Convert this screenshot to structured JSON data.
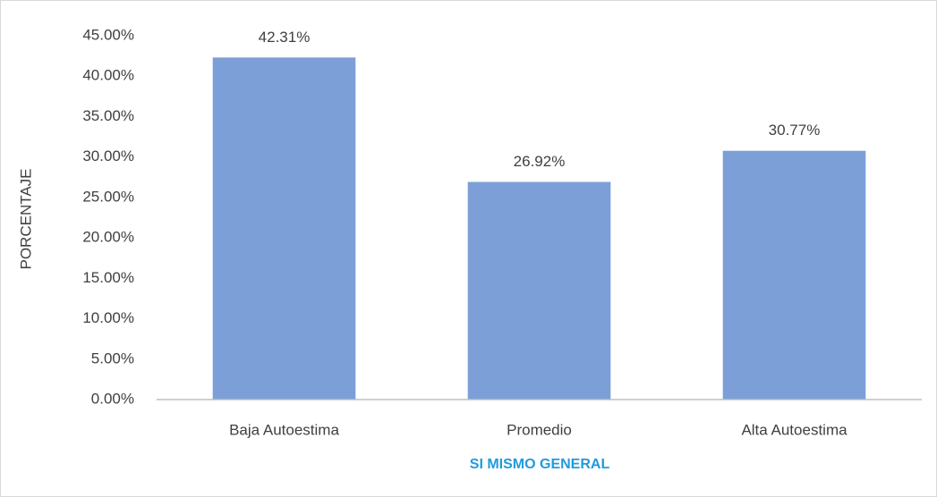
{
  "chart_data": {
    "type": "bar",
    "categories": [
      "Baja Autoestima",
      "Promedio",
      "Alta Autoestima"
    ],
    "values": [
      42.31,
      26.92,
      30.77
    ],
    "value_labels": [
      "42.31%",
      "26.92%",
      "30.77%"
    ],
    "color": "#7c9fd7",
    "ylabel": "PORCENTAJE",
    "xlabel": "SI MISMO GENERAL",
    "ylim": [
      0,
      45
    ],
    "yticks": [
      {
        "value": 0,
        "label": "0.00%"
      },
      {
        "value": 5,
        "label": "5.00%"
      },
      {
        "value": 10,
        "label": "10.00%"
      },
      {
        "value": 15,
        "label": "15.00%"
      },
      {
        "value": 20,
        "label": "20.00%"
      },
      {
        "value": 25,
        "label": "25.00%"
      },
      {
        "value": 30,
        "label": "30.00%"
      },
      {
        "value": 35,
        "label": "35.00%"
      },
      {
        "value": 40,
        "label": "40.00%"
      },
      {
        "value": 45,
        "label": "45.00%"
      }
    ],
    "grid": false
  }
}
